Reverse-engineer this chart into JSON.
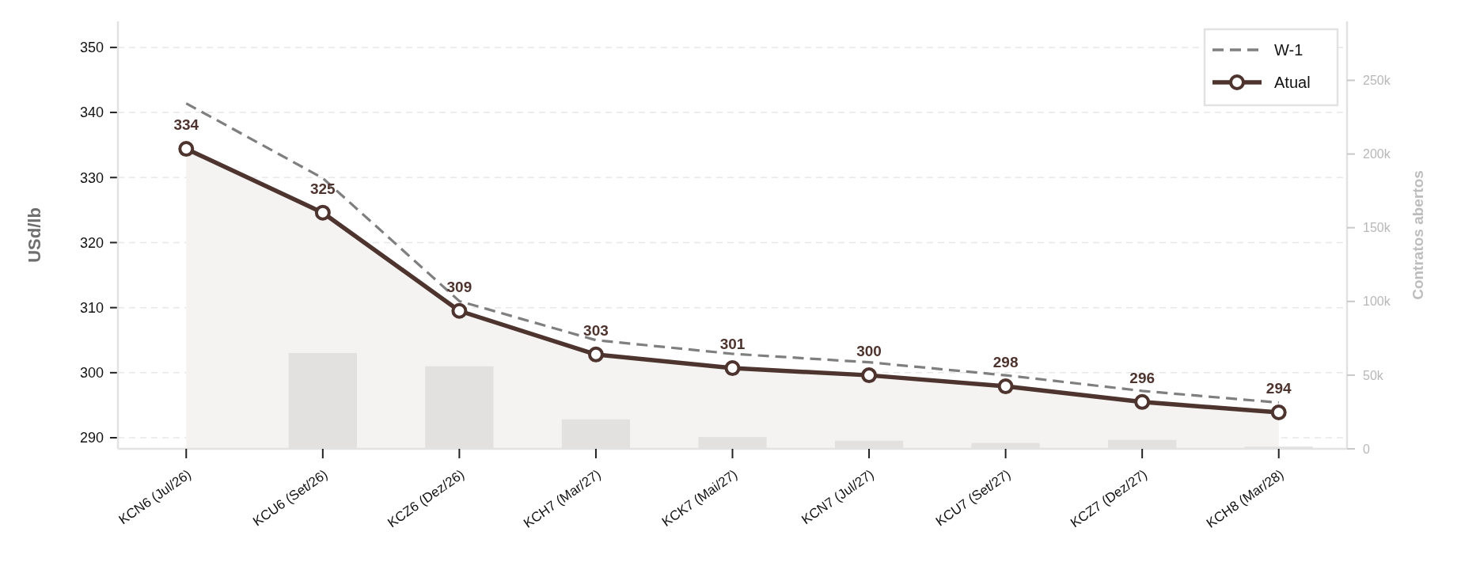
{
  "chart_data": {
    "type": "line",
    "ylabel": "USd/lb",
    "y2label": "Contratos abertos",
    "categories": [
      "KCN6 (Jul/26)",
      "KCU6 (Set/26)",
      "KCZ6 (Dez/26)",
      "KCH7 (Mar/27)",
      "KCK7 (Mai/27)",
      "KCN7 (Jul/27)",
      "KCU7 (Set/27)",
      "KCZ7 (Dez/27)",
      "KCH8 (Mar/28)"
    ],
    "series": [
      {
        "type": "bar",
        "axis": "y2",
        "color": "#e2e1e0",
        "values": [
          0,
          65000,
          56000,
          20000,
          8000,
          5500,
          4000,
          6000,
          1500
        ]
      },
      {
        "name": "W-1",
        "color": "#7f7f7f",
        "line_style": "dashed",
        "marker": "none",
        "values": [
          341.4,
          329.9,
          311.0,
          305.0,
          302.9,
          301.6,
          299.6,
          297.2,
          295.4
        ]
      },
      {
        "type": "area",
        "name": "Atual",
        "color": "#4e342e",
        "line_style": "solid",
        "marker": "circle",
        "values": [
          334.4,
          324.6,
          309.5,
          302.8,
          300.7,
          299.6,
          297.9,
          295.5,
          293.9
        ],
        "value_labels": [
          "334",
          "325",
          "309",
          "303",
          "301",
          "300",
          "298",
          "296",
          "294"
        ]
      }
    ],
    "ylim": [
      288.3,
      354
    ],
    "yticks": [
      290,
      300,
      310,
      320,
      330,
      340,
      350
    ],
    "y2lim": [
      0,
      290000
    ],
    "y2ticks": [
      {
        "value": 0,
        "label": "0"
      },
      {
        "value": 50000,
        "label": "50k"
      },
      {
        "value": 100000,
        "label": "100k"
      },
      {
        "value": 150000,
        "label": "150k"
      },
      {
        "value": 200000,
        "label": "200k"
      },
      {
        "value": 250000,
        "label": "250k"
      }
    ],
    "grid": "y",
    "legend": "top right"
  }
}
